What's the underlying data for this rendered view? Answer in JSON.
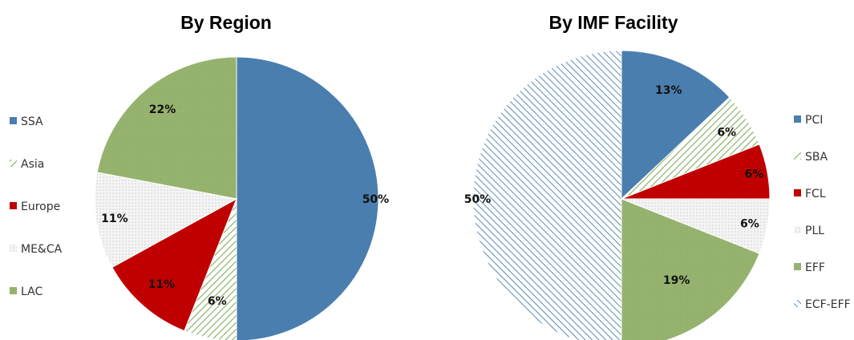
{
  "chart_data": [
    {
      "type": "pie",
      "title": "By Region",
      "legend_placement": "left",
      "slices": [
        {
          "label": "SSA",
          "value": 50,
          "display": "50%",
          "fill": "solid",
          "color": "#4A7EAE"
        },
        {
          "label": "Asia",
          "value": 6,
          "display": "6%",
          "fill": "hatch",
          "color": "#8DB26A"
        },
        {
          "label": "Europe",
          "value": 11,
          "display": "11%",
          "fill": "solid",
          "color": "#C00000"
        },
        {
          "label": "ME&CA",
          "value": 11,
          "display": "11%",
          "fill": "dots",
          "color": "#D9D9D9"
        },
        {
          "label": "LAC",
          "value": 22,
          "display": "22%",
          "fill": "dense",
          "color": "#92B06A"
        }
      ]
    },
    {
      "type": "pie",
      "title": "By IMF Facility",
      "legend_placement": "right",
      "slices": [
        {
          "label": "PCI",
          "value": 13,
          "display": "13%",
          "fill": "solid",
          "color": "#4A7EAE"
        },
        {
          "label": "SBA",
          "value": 6,
          "display": "6%",
          "fill": "hatch",
          "color": "#8DB26A"
        },
        {
          "label": "FCL",
          "value": 6,
          "display": "6%",
          "fill": "solid",
          "color": "#C00000"
        },
        {
          "label": "PLL",
          "value": 6,
          "display": "6%",
          "fill": "dots",
          "color": "#D9D9D9"
        },
        {
          "label": "EFF",
          "value": 19,
          "display": "19%",
          "fill": "dense",
          "color": "#92B06A"
        },
        {
          "label": "ECF-EFF",
          "value": 50,
          "display": "50%",
          "fill": "hatch-rev",
          "color": "#4A7EAE"
        }
      ]
    }
  ]
}
